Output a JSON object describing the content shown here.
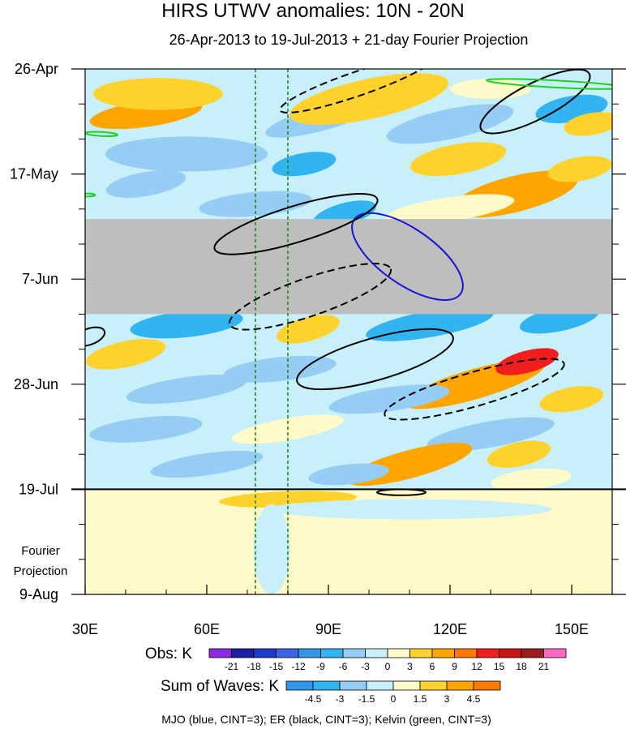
{
  "chart_data": {
    "type": "heatmap",
    "title": "HIRS UTWV anomalies: 10N - 20N",
    "subtitle": "26-Apr-2013 to 19-Jul-2013 + 21-day Fourier Projection",
    "x_axis": {
      "range": [
        30,
        160
      ],
      "ticks": [
        30,
        60,
        90,
        120,
        150
      ],
      "tick_labels": [
        "30E",
        "60E",
        "90E",
        "120E",
        "150E"
      ],
      "minor_step": 10
    },
    "y_axis": {
      "range_days": [
        0,
        105
      ],
      "ticks": [
        0,
        21,
        42,
        63,
        84,
        105
      ],
      "tick_labels": [
        "26-Apr",
        "17-May",
        "7-Jun",
        "28-Jun",
        "19-Jul",
        "9-Aug"
      ],
      "minor_step_days": 7,
      "direction": "down"
    },
    "projection_label": "Fourier Projection",
    "projection_start_day": 84,
    "missing_band": {
      "days": [
        30,
        49
      ],
      "color": "#bebebe"
    },
    "reference_longitudes": [
      72,
      80
    ],
    "obs_legend": {
      "label": "Obs: K",
      "levels": [
        "-21",
        "-18",
        "-15",
        "-12",
        "-9",
        "-6",
        "-3",
        "0",
        "3",
        "6",
        "9",
        "12",
        "15",
        "18",
        "21"
      ],
      "colors": [
        "#8a2be2",
        "#1e1ea0",
        "#1e3cc8",
        "#3c64e6",
        "#3296e6",
        "#32b4f0",
        "#96cdf5",
        "#c8f0fa",
        "#fffac8",
        "#ffd22d",
        "#ffa500",
        "#ff7800",
        "#f01e1e",
        "#c81414",
        "#9b1e1e",
        "#ff69c8"
      ]
    },
    "waves_legend": {
      "label": "Sum of Waves: K",
      "levels": [
        "-4.5",
        "-3",
        "-1.5",
        "0",
        "1.5",
        "3",
        "4.5"
      ],
      "colors": [
        "#3296e6",
        "#32b4f0",
        "#96cdf5",
        "#c8f0fa",
        "#fffac8",
        "#ffd22d",
        "#ffa500",
        "#ff7800"
      ]
    },
    "contour_legend": "MJO (blue, CINT=3); ER (black, CINT=3); Kelvin (green, CINT=3)",
    "contours": [
      {
        "wave": "MJO",
        "color": "#1414dc",
        "sign": "positive",
        "center": [
          109.5,
          37.5
        ],
        "radius": [
          16,
          5.5
        ],
        "angle_deg": 35
      },
      {
        "wave": "ER",
        "color": "#000000",
        "sign": "positive",
        "center": [
          141,
          6.5
        ],
        "radius": [
          15,
          3.6
        ],
        "angle_deg": -27
      },
      {
        "wave": "ER",
        "color": "#000000",
        "sign": "positive",
        "center": [
          82,
          31
        ],
        "radius": [
          21,
          3.6
        ],
        "angle_deg": -17
      },
      {
        "wave": "ER",
        "color": "#000000",
        "sign": "positive",
        "center": [
          101.5,
          58
        ],
        "radius": [
          20,
          4.2
        ],
        "angle_deg": -16
      },
      {
        "wave": "ER",
        "color": "#000000",
        "sign": "positive",
        "center": [
          31,
          53.5
        ],
        "radius": [
          4,
          1.6
        ],
        "angle_deg": -20
      },
      {
        "wave": "ER",
        "color": "#000000",
        "sign": "positive",
        "center": [
          108,
          84.6
        ],
        "radius": [
          6,
          0.6
        ],
        "angle_deg": 0
      },
      {
        "wave": "ER",
        "color": "#000000",
        "sign": "negative",
        "center": [
          85.5,
          45.5
        ],
        "radius": [
          21,
          3.8
        ],
        "angle_deg": -19
      },
      {
        "wave": "ER",
        "color": "#000000",
        "sign": "negative",
        "center": [
          126,
          64
        ],
        "radius": [
          23,
          3.4
        ],
        "angle_deg": -16
      },
      {
        "wave": "ER",
        "color": "#000000",
        "sign": "negative",
        "center": [
          97,
          3
        ],
        "radius": [
          20,
          2.4
        ],
        "angle_deg": -19
      },
      {
        "wave": "Kelvin",
        "color": "#1ed21e",
        "sign": "positive",
        "center": [
          146,
          3
        ],
        "radius": [
          17,
          0.7
        ],
        "angle_deg": 3
      },
      {
        "wave": "Kelvin",
        "color": "#1ed21e",
        "sign": "positive",
        "center": [
          34,
          13
        ],
        "radius": [
          4,
          0.4
        ],
        "angle_deg": 3
      },
      {
        "wave": "Kelvin",
        "color": "#1ed21e",
        "sign": "positive",
        "center": [
          30.5,
          25.2
        ],
        "radius": [
          2,
          0.3
        ],
        "angle_deg": 0
      }
    ],
    "anomaly_features": [
      {
        "center": [
          45,
          9
        ],
        "radius": [
          14,
          2.6
        ],
        "angle_deg": -8,
        "value": 7
      },
      {
        "center": [
          48,
          5
        ],
        "radius": [
          16,
          3.2
        ],
        "angle_deg": 0,
        "value": 4
      },
      {
        "center": [
          88,
          10
        ],
        "radius": [
          14,
          2.4
        ],
        "angle_deg": -15,
        "value": -5
      },
      {
        "center": [
          120,
          11
        ],
        "radius": [
          16,
          3
        ],
        "angle_deg": -12,
        "value": -5
      },
      {
        "center": [
          150,
          8
        ],
        "radius": [
          9,
          2.6
        ],
        "angle_deg": -10,
        "value": -7
      },
      {
        "center": [
          100,
          6
        ],
        "radius": [
          20,
          4
        ],
        "angle_deg": -12,
        "value": 4
      },
      {
        "center": [
          130,
          4
        ],
        "radius": [
          10,
          2
        ],
        "angle_deg": 0,
        "value": 3
      },
      {
        "center": [
          155,
          11
        ],
        "radius": [
          7,
          2.2
        ],
        "angle_deg": -10,
        "value": 6
      },
      {
        "center": [
          55,
          17
        ],
        "radius": [
          20,
          3.5
        ],
        "angle_deg": 0,
        "value": -3
      },
      {
        "center": [
          84,
          19
        ],
        "radius": [
          8,
          2.2
        ],
        "angle_deg": -10,
        "value": -8
      },
      {
        "center": [
          122,
          18
        ],
        "radius": [
          12,
          3
        ],
        "angle_deg": -10,
        "value": 4
      },
      {
        "center": [
          136,
          25
        ],
        "radius": [
          16,
          3.6
        ],
        "angle_deg": -14,
        "value": 8
      },
      {
        "center": [
          152,
          20
        ],
        "radius": [
          8,
          2.4
        ],
        "angle_deg": -10,
        "value": 5
      },
      {
        "center": [
          94,
          29
        ],
        "radius": [
          8,
          2.2
        ],
        "angle_deg": -15,
        "value": -8
      },
      {
        "center": [
          72,
          27
        ],
        "radius": [
          14,
          2.4
        ],
        "angle_deg": -5,
        "value": -4
      },
      {
        "center": [
          120,
          28
        ],
        "radius": [
          16,
          2.4
        ],
        "angle_deg": -8,
        "value": 3
      },
      {
        "center": [
          45,
          23
        ],
        "radius": [
          10,
          2.4
        ],
        "angle_deg": -10,
        "value": -3
      },
      {
        "center": [
          55,
          51
        ],
        "radius": [
          14,
          2.6
        ],
        "angle_deg": -6,
        "value": -7
      },
      {
        "center": [
          85,
          52
        ],
        "radius": [
          8,
          2.4
        ],
        "angle_deg": -15,
        "value": 5
      },
      {
        "center": [
          115,
          51
        ],
        "radius": [
          16,
          2.6
        ],
        "angle_deg": -10,
        "value": -6
      },
      {
        "center": [
          147,
          50
        ],
        "radius": [
          10,
          2.4
        ],
        "angle_deg": -12,
        "value": -7
      },
      {
        "center": [
          40,
          57
        ],
        "radius": [
          10,
          2.6
        ],
        "angle_deg": -12,
        "value": 6
      },
      {
        "center": [
          78,
          60
        ],
        "radius": [
          14,
          2.4
        ],
        "angle_deg": -6,
        "value": -4
      },
      {
        "center": [
          126,
          63
        ],
        "radius": [
          18,
          3
        ],
        "angle_deg": -16,
        "value": 9
      },
      {
        "center": [
          139,
          58.5
        ],
        "radius": [
          8,
          2.2
        ],
        "angle_deg": -15,
        "value": 13
      },
      {
        "center": [
          55,
          64
        ],
        "radius": [
          15,
          2.4
        ],
        "angle_deg": -8,
        "value": -3
      },
      {
        "center": [
          105,
          66
        ],
        "radius": [
          15,
          2.4
        ],
        "angle_deg": -8,
        "value": -4
      },
      {
        "center": [
          150,
          66
        ],
        "radius": [
          8,
          2.4
        ],
        "angle_deg": -10,
        "value": 4
      },
      {
        "center": [
          45,
          72
        ],
        "radius": [
          14,
          2.4
        ],
        "angle_deg": -6,
        "value": -4
      },
      {
        "center": [
          80,
          72
        ],
        "radius": [
          14,
          2.2
        ],
        "angle_deg": -10,
        "value": 3
      },
      {
        "center": [
          130,
          73
        ],
        "radius": [
          16,
          2.6
        ],
        "angle_deg": -10,
        "value": -5
      },
      {
        "center": [
          110,
          79
        ],
        "radius": [
          16,
          2.8
        ],
        "angle_deg": -15,
        "value": 7
      },
      {
        "center": [
          137,
          77
        ],
        "radius": [
          8,
          2.4
        ],
        "angle_deg": -12,
        "value": 5
      },
      {
        "center": [
          60,
          79
        ],
        "radius": [
          14,
          2.2
        ],
        "angle_deg": -8,
        "value": -5
      },
      {
        "center": [
          95,
          81
        ],
        "radius": [
          10,
          2
        ],
        "angle_deg": -6,
        "value": -4
      },
      {
        "center": [
          140,
          82
        ],
        "radius": [
          10,
          2
        ],
        "angle_deg": -6,
        "value": 3
      }
    ],
    "projection_features": [
      {
        "center": [
          80,
          86
        ],
        "radius": [
          17,
          1.6
        ],
        "angle_deg": -2,
        "value": 2
      },
      {
        "center": [
          95,
          92
        ],
        "radius": [
          60,
          3
        ],
        "angle_deg": 0,
        "value": 0.7
      },
      {
        "center": [
          110,
          88
        ],
        "radius": [
          35,
          2
        ],
        "angle_deg": 0,
        "value": -0.7
      },
      {
        "center": [
          76,
          96
        ],
        "radius": [
          4.5,
          9
        ],
        "angle_deg": 0,
        "value": -0.7
      }
    ]
  }
}
